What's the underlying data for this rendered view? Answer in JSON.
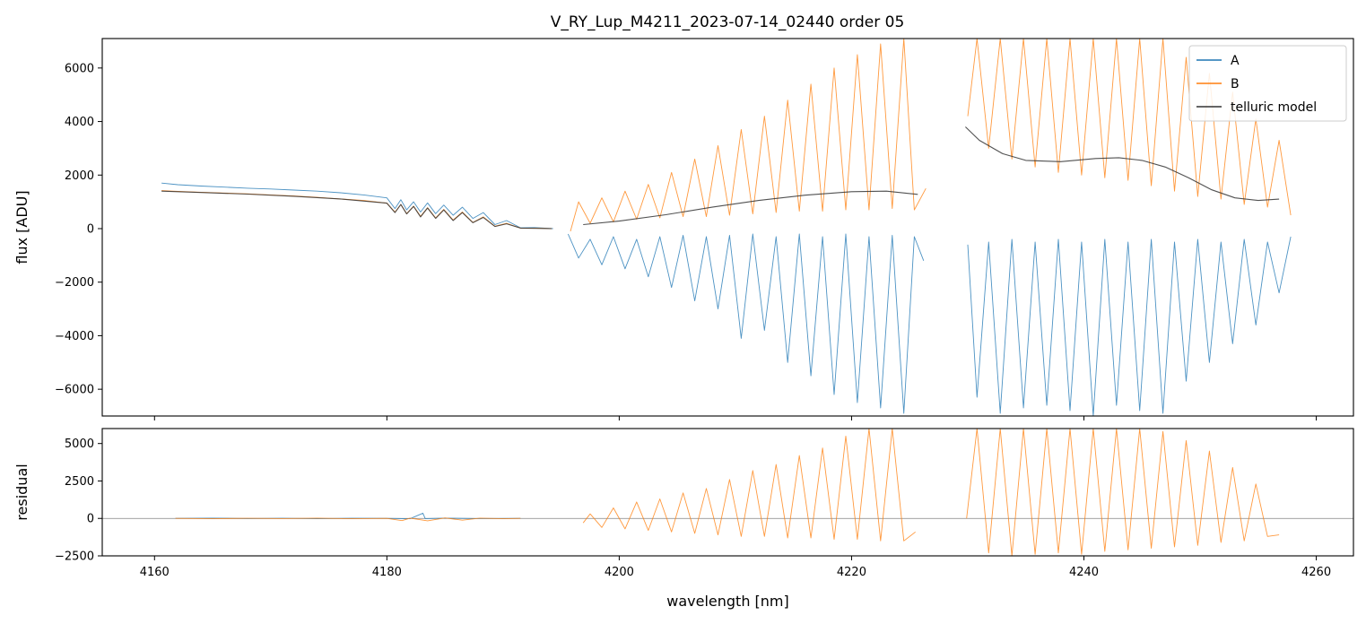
{
  "figure": {
    "title": "V_RY_Lup_M4211_2023-07-14_02440  order 05"
  },
  "colors": {
    "A": "#1f77b4",
    "B": "#ff7f0e",
    "telluric": "#333333",
    "zero_line": "#808080",
    "frame": "#000000"
  },
  "chart_data": [
    {
      "type": "line",
      "panel": "main",
      "title": "V_RY_Lup_M4211_2023-07-14_02440  order 05",
      "xlabel": "",
      "ylabel": "flux [ADU]",
      "xlim": [
        4155.5,
        4263.2
      ],
      "ylim": [
        -7000,
        7100
      ],
      "xticks": [
        4160,
        4180,
        4200,
        4220,
        4240,
        4260
      ],
      "yticks": [
        -6000,
        -4000,
        -2000,
        0,
        2000,
        4000,
        6000
      ],
      "ytick_labels": [
        "−6000",
        "−4000",
        "−2000",
        "0",
        "2000",
        "4000",
        "6000"
      ],
      "legend": {
        "position": "top-right",
        "entries": [
          "A",
          "B",
          "telluric model"
        ]
      },
      "series": [
        {
          "name": "A",
          "segments": [
            {
              "x": [
                4160.6,
                4162,
                4164,
                4166,
                4168,
                4170,
                4172,
                4174,
                4176,
                4178,
                4180,
                4180.7,
                4181.2,
                4181.7,
                4182.3,
                4182.9,
                4183.5,
                4184.2,
                4184.9,
                4185.7,
                4186.5,
                4187.4,
                4188.3,
                4189.3,
                4190.3,
                4191.5,
                4192.7,
                4194.3
              ],
              "y": [
                1700,
                1640,
                1590,
                1550,
                1510,
                1480,
                1440,
                1400,
                1340,
                1260,
                1150,
                750,
                1080,
                700,
                1000,
                620,
                960,
                560,
                880,
                500,
                800,
                380,
                600,
                150,
                300,
                30,
                40,
                0
              ]
            },
            {
              "x": [
                4195.6,
                4196.5,
                4197.5,
                4198.5,
                4199.5,
                4200.5,
                4201.5,
                4202.5,
                4203.5,
                4204.5,
                4205.5,
                4206.5,
                4207.5,
                4208.5,
                4209.5,
                4210.5,
                4211.5,
                4212.5,
                4213.5,
                4214.5,
                4215.5,
                4216.5,
                4217.5,
                4218.5,
                4219.5,
                4220.5,
                4221.5,
                4222.5,
                4223.5,
                4224.5,
                4225.4,
                4226.2
              ],
              "y": [
                -200,
                -1100,
                -400,
                -1350,
                -300,
                -1500,
                -400,
                -1800,
                -300,
                -2200,
                -250,
                -2700,
                -300,
                -3000,
                -250,
                -4100,
                -200,
                -3800,
                -300,
                -5000,
                -200,
                -5500,
                -300,
                -6200,
                -200,
                -6500,
                -300,
                -6700,
                -250,
                -6900,
                -300,
                -1200
              ]
            },
            {
              "x": [
                4230.0,
                4230.8,
                4231.8,
                4232.8,
                4233.8,
                4234.8,
                4235.8,
                4236.8,
                4237.8,
                4238.8,
                4239.8,
                4240.8,
                4241.8,
                4242.8,
                4243.8,
                4244.8,
                4245.8,
                4246.8,
                4247.8,
                4248.8,
                4249.8,
                4250.8,
                4251.8,
                4252.8,
                4253.8,
                4254.8,
                4255.8,
                4256.8,
                4257.8
              ],
              "y": [
                -600,
                -6300,
                -500,
                -6900,
                -400,
                -6700,
                -500,
                -6600,
                -400,
                -6800,
                -500,
                -7000,
                -400,
                -6600,
                -500,
                -6800,
                -400,
                -6900,
                -500,
                -5700,
                -400,
                -5000,
                -500,
                -4300,
                -400,
                -3600,
                -500,
                -2400,
                -300
              ]
            }
          ]
        },
        {
          "name": "B",
          "segments": [
            {
              "x": [
                4160.6,
                4162,
                4164,
                4166,
                4168,
                4170,
                4172,
                4174,
                4176,
                4178,
                4180,
                4180.7,
                4181.2,
                4181.7,
                4182.3,
                4182.9,
                4183.5,
                4184.2,
                4184.9,
                4185.7,
                4186.5,
                4187.4,
                4188.3,
                4189.3,
                4190.3,
                4191.5,
                4192.7,
                4194.2
              ],
              "y": [
                1420,
                1390,
                1360,
                1330,
                1300,
                1260,
                1220,
                1170,
                1110,
                1050,
                950,
                620,
                900,
                560,
                840,
                460,
                780,
                400,
                720,
                320,
                620,
                230,
                440,
                90,
                200,
                20,
                20,
                0
              ]
            },
            {
              "x": [
                4195.8,
                4196.5,
                4197.5,
                4198.5,
                4199.5,
                4200.5,
                4201.5,
                4202.5,
                4203.5,
                4204.5,
                4205.5,
                4206.5,
                4207.5,
                4208.5,
                4209.5,
                4210.5,
                4211.5,
                4212.5,
                4213.5,
                4214.5,
                4215.5,
                4216.5,
                4217.5,
                4218.5,
                4219.5,
                4220.5,
                4221.5,
                4222.5,
                4223.5,
                4224.5,
                4225.4,
                4226.4
              ],
              "y": [
                -100,
                1000,
                200,
                1150,
                250,
                1400,
                350,
                1650,
                400,
                2100,
                450,
                2600,
                450,
                3100,
                500,
                3700,
                550,
                4200,
                600,
                4800,
                650,
                5400,
                650,
                6000,
                700,
                6500,
                700,
                6900,
                750,
                7100,
                700,
                1500
              ]
            },
            {
              "x": [
                4230.0,
                4230.8,
                4231.8,
                4232.8,
                4233.8,
                4234.8,
                4235.8,
                4236.8,
                4237.8,
                4238.8,
                4239.8,
                4240.8,
                4241.8,
                4242.8,
                4243.8,
                4244.8,
                4245.8,
                4246.8,
                4247.8,
                4248.8,
                4249.8,
                4250.8,
                4251.8,
                4252.8,
                4253.8,
                4254.8,
                4255.8,
                4256.8,
                4257.8
              ],
              "y": [
                4200,
                7100,
                3000,
                7100,
                2600,
                7100,
                2300,
                7100,
                2100,
                7100,
                2000,
                7100,
                1900,
                7100,
                1800,
                7100,
                1600,
                7100,
                1400,
                6400,
                1200,
                5800,
                1100,
                5100,
                900,
                4100,
                800,
                3300,
                500
              ]
            }
          ]
        },
        {
          "name": "telluric model",
          "segments": [
            {
              "x": [
                4160.6,
                4164,
                4168,
                4172,
                4176,
                4180,
                4180.7,
                4181.2,
                4181.7,
                4182.3,
                4182.9,
                4183.5,
                4184.2,
                4184.9,
                4185.7,
                4186.5,
                4187.4,
                4188.3,
                4189.3,
                4190.3,
                4191.5,
                4194.2
              ],
              "y": [
                1400,
                1350,
                1290,
                1210,
                1110,
                950,
                600,
                900,
                550,
                830,
                440,
                770,
                380,
                700,
                300,
                600,
                220,
                420,
                80,
                180,
                20,
                0
              ]
            },
            {
              "x": [
                4196.9,
                4200,
                4204,
                4208,
                4212,
                4216,
                4220,
                4223,
                4225.7
              ],
              "y": [
                150,
                280,
                520,
                800,
                1050,
                1250,
                1380,
                1400,
                1280
              ]
            },
            {
              "x": [
                4229.8,
                4231,
                4233,
                4235,
                4238,
                4241,
                4243,
                4245,
                4247,
                4249,
                4251,
                4253,
                4255,
                4256.8
              ],
              "y": [
                3800,
                3300,
                2800,
                2550,
                2500,
                2620,
                2650,
                2550,
                2300,
                1900,
                1450,
                1150,
                1050,
                1100
              ]
            }
          ]
        }
      ]
    },
    {
      "type": "line",
      "panel": "residual",
      "title": "",
      "xlabel": "wavelength [nm]",
      "ylabel": "residual",
      "xlim": [
        4155.5,
        4263.2
      ],
      "ylim": [
        -2500,
        6000
      ],
      "xticks": [
        4160,
        4180,
        4200,
        4220,
        4240,
        4260
      ],
      "yticks": [
        -2500,
        0,
        2500,
        5000
      ],
      "ytick_labels": [
        "−2500",
        "0",
        "2500",
        "5000"
      ],
      "reference_line": 0,
      "series": [
        {
          "name": "A",
          "segments": [
            {
              "x": [
                4161.8,
                4165,
                4168,
                4171,
                4174,
                4177,
                4180,
                4182,
                4183.1,
                4183.3,
                4185,
                4188,
                4191.5
              ],
              "y": [
                0,
                20,
                -10,
                10,
                -20,
                10,
                0,
                -20,
                350,
                -10,
                20,
                -10,
                0
              ]
            }
          ]
        },
        {
          "name": "B",
          "segments": [
            {
              "x": [
                4161.8,
                4165,
                4168,
                4171,
                4174,
                4177,
                4180,
                4181.3,
                4182,
                4183.5,
                4185,
                4186.5,
                4188,
                4190,
                4191.5
              ],
              "y": [
                0,
                -20,
                10,
                -10,
                20,
                -20,
                0,
                -150,
                20,
                -160,
                30,
                -120,
                20,
                -20,
                0
              ]
            },
            {
              "x": [
                4196.9,
                4197.5,
                4198.5,
                4199.5,
                4200.5,
                4201.5,
                4202.5,
                4203.5,
                4204.5,
                4205.5,
                4206.5,
                4207.5,
                4208.5,
                4209.5,
                4210.5,
                4211.5,
                4212.5,
                4213.5,
                4214.5,
                4215.5,
                4216.5,
                4217.5,
                4218.5,
                4219.5,
                4220.5,
                4221.5,
                4222.5,
                4223.5,
                4224.5,
                4225.5
              ],
              "y": [
                -300,
                300,
                -600,
                700,
                -700,
                1100,
                -800,
                1300,
                -900,
                1700,
                -1000,
                2000,
                -1100,
                2600,
                -1200,
                3200,
                -1200,
                3600,
                -1300,
                4200,
                -1300,
                4700,
                -1400,
                5500,
                -1400,
                6000,
                -1500,
                6000,
                -1500,
                -900
              ]
            },
            {
              "x": [
                4229.9,
                4230.8,
                4231.8,
                4232.8,
                4233.8,
                4234.8,
                4235.8,
                4236.8,
                4237.8,
                4238.8,
                4239.8,
                4240.8,
                4241.8,
                4242.8,
                4243.8,
                4244.8,
                4245.8,
                4246.8,
                4247.8,
                4248.8,
                4249.8,
                4250.8,
                4251.8,
                4252.8,
                4253.8,
                4254.8,
                4255.8,
                4256.8
              ],
              "y": [
                0,
                6000,
                -2300,
                6000,
                -2500,
                6000,
                -2400,
                6000,
                -2300,
                6000,
                -2400,
                6000,
                -2200,
                6000,
                -2100,
                6000,
                -2000,
                5800,
                -1900,
                5200,
                -1800,
                4500,
                -1600,
                3400,
                -1500,
                2300,
                -1200,
                -1100
              ]
            }
          ]
        }
      ]
    }
  ]
}
